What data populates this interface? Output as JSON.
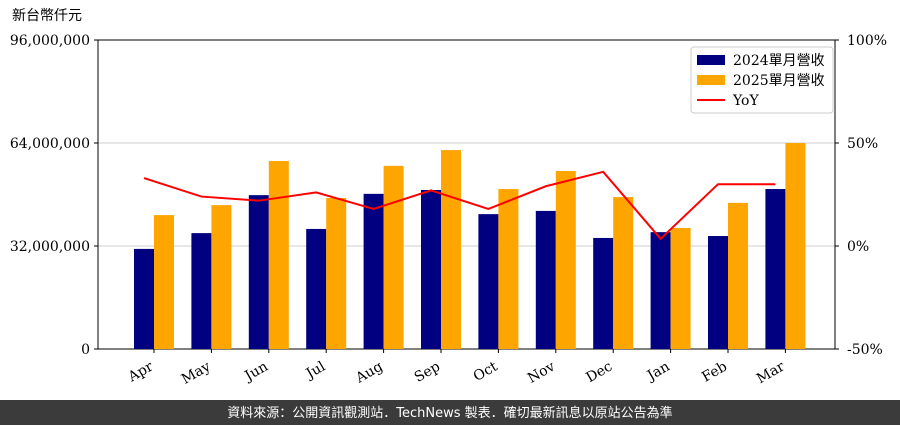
{
  "chart_data": {
    "type": "bar",
    "y_label": "新台幣仟元",
    "categories": [
      "Apr",
      "May",
      "Jun",
      "Jul",
      "Aug",
      "Sep",
      "Oct",
      "Nov",
      "Dec",
      "Jan",
      "Feb",
      "Mar"
    ],
    "series": [
      {
        "name": "2024單月營收",
        "color": "#000080",
        "values": [
          31100000,
          36000000,
          47800000,
          37300000,
          48200000,
          49400000,
          41900000,
          42900000,
          34500000,
          36300000,
          35100000,
          49700000
        ]
      },
      {
        "name": "2025單月營收",
        "color": "#ffa500",
        "values": [
          41600000,
          44700000,
          58400000,
          46900000,
          56900000,
          61800000,
          49700000,
          55300000,
          47200000,
          37600000,
          45400000,
          64000000
        ]
      },
      {
        "name": "YoY",
        "color": "#ff0000",
        "type": "line",
        "axis": "y2",
        "values": [
          33,
          24,
          22,
          26,
          18,
          27,
          18,
          29,
          36,
          3.5,
          30,
          30
        ]
      }
    ],
    "ylim": [
      0,
      96000000
    ],
    "yticks": [
      0,
      {
        "value": 32000000,
        "label": "32,000,000"
      },
      {
        "value": 64000000,
        "label": "64,000,000"
      },
      {
        "value": 96000000,
        "label": "96,000,000"
      }
    ],
    "y2lim": [
      -50,
      100
    ],
    "y2ticks": [
      {
        "value": -50,
        "label": "-50%"
      },
      {
        "value": 0,
        "label": "0%"
      },
      {
        "value": 50,
        "label": "50%"
      },
      {
        "value": 100,
        "label": "100%"
      }
    ],
    "grid": true,
    "legend": "upper right",
    "footer": "資料來源：公開資訊觀測站．TechNews 製表．確切最新訊息以原站公告為準"
  }
}
